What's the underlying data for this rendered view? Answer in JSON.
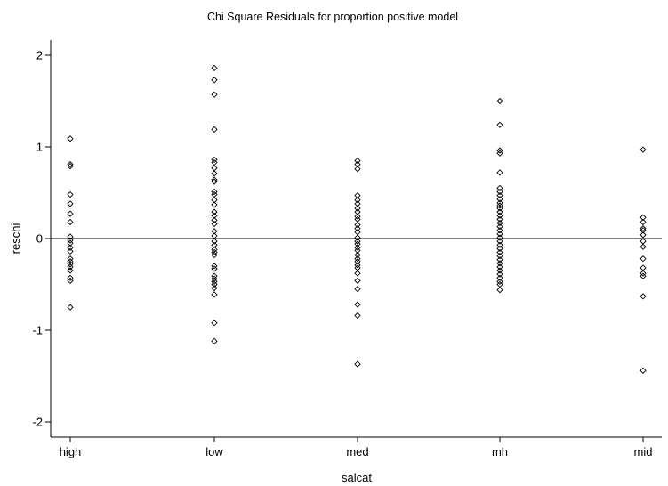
{
  "chart_data": {
    "type": "scatter",
    "title": "Chi Square Residuals for proportion positive model",
    "xlabel": "salcat",
    "ylabel": "reschi",
    "categories": [
      "high",
      "low",
      "med",
      "mh",
      "mid"
    ],
    "yticks": [
      -2,
      -1,
      0,
      1,
      2
    ],
    "ylim": [
      -2.15,
      2.15
    ],
    "reference_line": 0,
    "grid": false,
    "marker": "hollow-diamond",
    "series": [
      {
        "category": "high",
        "values": [
          1.09,
          0.81,
          0.79,
          0.48,
          0.38,
          0.27,
          0.18,
          0.02,
          -0.02,
          -0.05,
          -0.1,
          -0.14,
          -0.22,
          -0.25,
          -0.28,
          -0.31,
          -0.35,
          -0.43,
          -0.46,
          -0.75
        ]
      },
      {
        "category": "low",
        "values": [
          1.86,
          1.73,
          1.57,
          1.19,
          0.86,
          0.83,
          0.77,
          0.71,
          0.64,
          0.62,
          0.51,
          0.48,
          0.42,
          0.37,
          0.29,
          0.25,
          0.2,
          0.16,
          0.08,
          0.03,
          -0.03,
          -0.07,
          -0.12,
          -0.15,
          -0.18,
          -0.3,
          -0.33,
          -0.41,
          -0.44,
          -0.47,
          -0.5,
          -0.54,
          -0.61,
          -0.92,
          -1.12
        ]
      },
      {
        "category": "med",
        "values": [
          0.85,
          0.81,
          0.76,
          0.47,
          0.42,
          0.38,
          0.33,
          0.29,
          0.24,
          0.21,
          0.15,
          0.11,
          0.07,
          0.01,
          -0.03,
          -0.06,
          -0.1,
          -0.13,
          -0.18,
          -0.22,
          -0.25,
          -0.29,
          -0.32,
          -0.38,
          -0.46,
          -0.55,
          -0.72,
          -0.84,
          -1.37
        ]
      },
      {
        "category": "mh",
        "values": [
          1.5,
          1.24,
          0.96,
          0.93,
          0.72,
          0.55,
          0.51,
          0.47,
          0.43,
          0.39,
          0.36,
          0.33,
          0.29,
          0.25,
          0.21,
          0.17,
          0.13,
          0.09,
          0.05,
          0.01,
          -0.03,
          -0.07,
          -0.11,
          -0.15,
          -0.19,
          -0.23,
          -0.27,
          -0.31,
          -0.35,
          -0.39,
          -0.43,
          -0.47,
          -0.5,
          -0.56
        ]
      },
      {
        "category": "mid",
        "values": [
          0.97,
          0.23,
          0.18,
          0.11,
          0.09,
          0.04,
          -0.03,
          -0.09,
          -0.22,
          -0.32,
          -0.38,
          -0.41,
          -0.63,
          -1.44
        ]
      }
    ]
  }
}
